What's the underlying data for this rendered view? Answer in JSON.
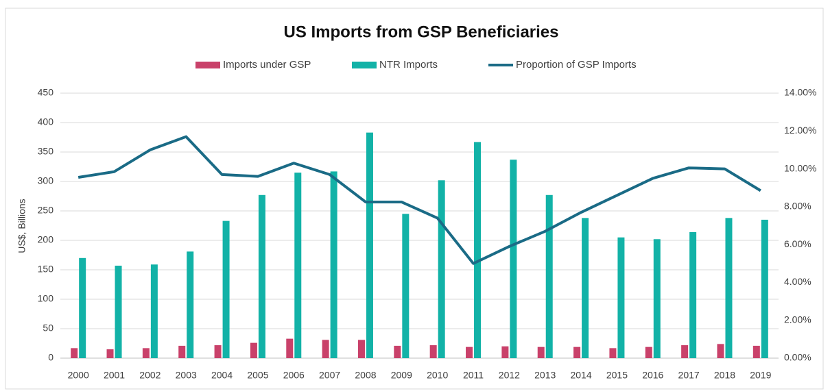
{
  "chart_data": {
    "type": "bar",
    "title": "US Imports from GSP Beneficiaries",
    "y_label": "US$, Billions",
    "categories": [
      "2000",
      "2001",
      "2002",
      "2003",
      "2004",
      "2005",
      "2006",
      "2007",
      "2008",
      "2009",
      "2010",
      "2011",
      "2012",
      "2013",
      "2014",
      "2015",
      "2016",
      "2017",
      "2018",
      "2019"
    ],
    "series": [
      {
        "name": "Imports under GSP",
        "type": "bar",
        "color": "#c9416a",
        "values": [
          17,
          15,
          17,
          21,
          22,
          26,
          33,
          31,
          31,
          21,
          22,
          19,
          20,
          19,
          19,
          17,
          19,
          22,
          24,
          21
        ]
      },
      {
        "name": "NTR Imports",
        "type": "bar",
        "color": "#12b2a7",
        "values": [
          170,
          157,
          159,
          181,
          233,
          277,
          315,
          317,
          383,
          245,
          302,
          367,
          337,
          277,
          238,
          205,
          202,
          214,
          238,
          235
        ]
      },
      {
        "name": "Proportion of GSP Imports",
        "type": "line",
        "axis": "y2",
        "color": "#1a6b86",
        "values": [
          9.55,
          9.85,
          11.0,
          11.7,
          9.7,
          9.6,
          10.3,
          9.7,
          8.25,
          8.25,
          7.4,
          5.0,
          5.9,
          6.7,
          7.7,
          8.6,
          9.5,
          10.05,
          10.0,
          8.85
        ]
      }
    ],
    "ylim": [
      0,
      450
    ],
    "yticks": [
      0,
      50,
      100,
      150,
      200,
      250,
      300,
      350,
      400,
      450
    ],
    "y2lim": [
      0,
      14
    ],
    "y2ticks": [
      {
        "value": 0,
        "label": "0.00%"
      },
      {
        "value": 2,
        "label": "2.00%"
      },
      {
        "value": 4,
        "label": "4.00%"
      },
      {
        "value": 6,
        "label": "6.00%"
      },
      {
        "value": 8,
        "label": "8.00%"
      },
      {
        "value": 10,
        "label": "10.00%"
      },
      {
        "value": 12,
        "label": "12.00%"
      },
      {
        "value": 14,
        "label": "14.00%"
      }
    ],
    "grid": true,
    "legend": "top"
  }
}
